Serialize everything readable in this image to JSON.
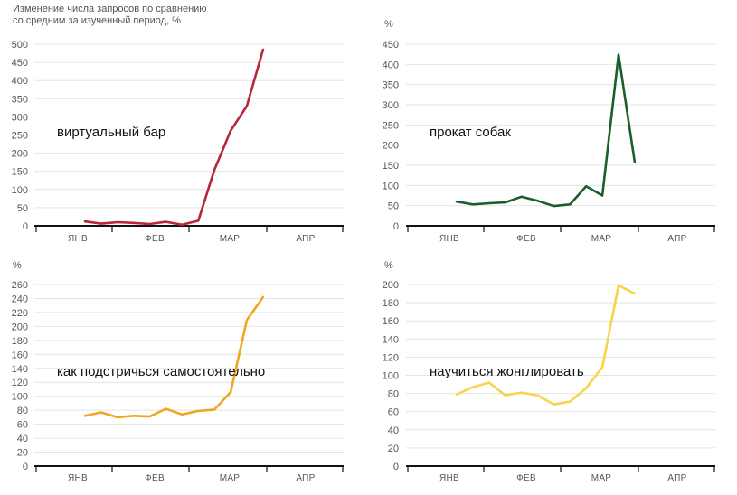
{
  "chart_data": [
    {
      "type": "line",
      "title": "виртуальный бар",
      "unit_label": "Изменение числа запросов по сравнению\nсо средним за изученный период, %",
      "color": "#b5283a",
      "ylim": [
        0,
        500
      ],
      "yticks": [
        0,
        50,
        100,
        150,
        200,
        250,
        300,
        350,
        400,
        450,
        500
      ],
      "months": [
        "ЯНВ",
        "ФЕВ",
        "МАР",
        "АПР"
      ],
      "values": [
        12,
        6,
        10,
        8,
        5,
        11,
        3,
        14,
        155,
        262,
        330,
        485
      ],
      "grid": true
    },
    {
      "type": "line",
      "title": "прокат собак",
      "unit_label": "%",
      "color": "#1a5e2a",
      "ylim": [
        0,
        450
      ],
      "yticks": [
        0,
        50,
        100,
        150,
        200,
        250,
        300,
        350,
        400,
        450
      ],
      "months": [
        "ЯНВ",
        "ФЕВ",
        "МАР",
        "АПР"
      ],
      "values": [
        60,
        53,
        56,
        58,
        72,
        62,
        49,
        53,
        98,
        75,
        424,
        158
      ],
      "grid": true
    },
    {
      "type": "line",
      "title": "как подстричься самостоятельно",
      "unit_label": "%",
      "color": "#f0a722",
      "ylim": [
        0,
        260
      ],
      "yticks": [
        0,
        20,
        40,
        60,
        80,
        100,
        120,
        140,
        160,
        180,
        200,
        220,
        240,
        260
      ],
      "months": [
        "ЯНВ",
        "ФЕВ",
        "МАР",
        "АПР"
      ],
      "values": [
        72,
        77,
        70,
        72,
        71,
        82,
        74,
        79,
        81,
        106,
        209,
        242
      ],
      "grid": true
    },
    {
      "type": "line",
      "title": "научиться жонглировать",
      "unit_label": "%",
      "color": "#f6d54a",
      "ylim": [
        0,
        200
      ],
      "yticks": [
        0,
        20,
        40,
        60,
        80,
        100,
        120,
        140,
        160,
        180,
        200
      ],
      "months": [
        "ЯНВ",
        "ФЕВ",
        "МАР",
        "АПР"
      ],
      "values": [
        79,
        87,
        92,
        78,
        81,
        78,
        68,
        71,
        86,
        109,
        199,
        190
      ],
      "grid": true
    }
  ]
}
